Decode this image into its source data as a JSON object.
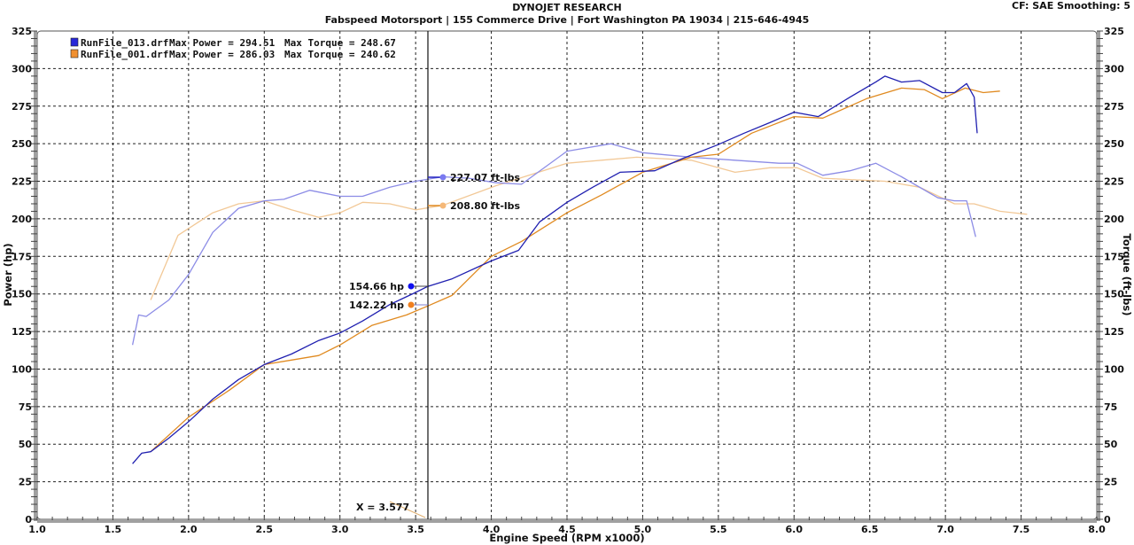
{
  "header": {
    "title": "DYNOJET RESEARCH",
    "subtitle": "Fabspeed Motorsport | 155 Commerce Drive | Fort Washington PA 19034 | 215-646-4945",
    "settings": "CF: SAE  Smoothing: 5"
  },
  "legend": [
    {
      "file": "RunFile_013.drf",
      "max_power_label": "Max Power = 294.51",
      "max_torque_label": "Max Torque = 248.67",
      "color": "#2020c0"
    },
    {
      "file": "RunFile_001.drf",
      "max_power_label": "Max Power = 286.03",
      "max_torque_label": "Max Torque = 240.62",
      "color": "#e08a20"
    }
  ],
  "cursor": {
    "label": "X = 3.577",
    "x": 3.577
  },
  "annotations": [
    {
      "text": "227.07 ft-lbs",
      "series": "RunFile_013 Torque",
      "value": 227.07
    },
    {
      "text": "208.80 ft-lbs",
      "series": "RunFile_001 Torque",
      "value": 208.8
    },
    {
      "text": "154.66 hp",
      "series": "RunFile_013 Power",
      "value": 154.66
    },
    {
      "text": "142.22 hp",
      "series": "RunFile_001 Power",
      "value": 142.22
    }
  ],
  "colors": {
    "power_013": "#2020b0",
    "torque_013": "#8c8ce6",
    "power_001": "#e08a20",
    "torque_001": "#f2c896",
    "grid": "#222222",
    "axis_band": "#a0a0a0"
  },
  "chart_data": {
    "type": "line",
    "title": "DYNOJET RESEARCH",
    "subtitle": "Fabspeed Motorsport | 155 Commerce Drive | Fort Washington PA 19034 | 215-646-4945",
    "xlabel": "Engine Speed (RPM x1000)",
    "ylabel": "Power (hp)",
    "y2label": "Torque (ft-lbs)",
    "xlim": [
      1.0,
      8.0
    ],
    "ylim": [
      0,
      325
    ],
    "y2lim": [
      0,
      325
    ],
    "xticks": [
      "1.0",
      "1.5",
      "2.0",
      "2.5",
      "3.0",
      "3.5",
      "4.0",
      "4.5",
      "5.0",
      "5.5",
      "6.0",
      "6.5",
      "7.0",
      "7.5",
      "8.0"
    ],
    "yticks": [
      "0",
      "25",
      "50",
      "75",
      "100",
      "125",
      "150",
      "175",
      "200",
      "225",
      "250",
      "275",
      "300",
      "325"
    ],
    "grid": true,
    "legend_position": "top-left",
    "series": [
      {
        "name": "RunFile_013.drf Power (hp)",
        "axis": "left",
        "points": [
          [
            1.63,
            37
          ],
          [
            1.69,
            44
          ],
          [
            1.75,
            45
          ],
          [
            1.87,
            54
          ],
          [
            2.0,
            65
          ],
          [
            2.16,
            80
          ],
          [
            2.33,
            93
          ],
          [
            2.5,
            103
          ],
          [
            2.68,
            110
          ],
          [
            2.86,
            119
          ],
          [
            3.0,
            124
          ],
          [
            3.15,
            132
          ],
          [
            3.33,
            143
          ],
          [
            3.5,
            151
          ],
          [
            3.58,
            155
          ],
          [
            3.74,
            160
          ],
          [
            4.0,
            172
          ],
          [
            4.18,
            179
          ],
          [
            4.32,
            198
          ],
          [
            4.5,
            211
          ],
          [
            4.67,
            221
          ],
          [
            4.85,
            231
          ],
          [
            5.08,
            232
          ],
          [
            5.26,
            240
          ],
          [
            5.49,
            249
          ],
          [
            5.67,
            257
          ],
          [
            5.84,
            264
          ],
          [
            6.0,
            271
          ],
          [
            6.16,
            268
          ],
          [
            6.37,
            281
          ],
          [
            6.54,
            291
          ],
          [
            6.6,
            295
          ],
          [
            6.71,
            291
          ],
          [
            6.83,
            292
          ],
          [
            6.98,
            284
          ],
          [
            7.06,
            284
          ],
          [
            7.14,
            290
          ],
          [
            7.19,
            281
          ],
          [
            7.21,
            257
          ]
        ]
      },
      {
        "name": "RunFile_013.drf Torque (ft-lbs)",
        "axis": "right",
        "points": [
          [
            1.63,
            116
          ],
          [
            1.67,
            136
          ],
          [
            1.72,
            135
          ],
          [
            1.87,
            146
          ],
          [
            2.0,
            163
          ],
          [
            2.16,
            191
          ],
          [
            2.33,
            207
          ],
          [
            2.5,
            212
          ],
          [
            2.63,
            213
          ],
          [
            2.8,
            219
          ],
          [
            3.0,
            215
          ],
          [
            3.15,
            215
          ],
          [
            3.33,
            221
          ],
          [
            3.5,
            225
          ],
          [
            3.68,
            228
          ],
          [
            3.85,
            227
          ],
          [
            4.03,
            224
          ],
          [
            4.2,
            223
          ],
          [
            4.5,
            245
          ],
          [
            4.79,
            250
          ],
          [
            5.0,
            244
          ],
          [
            5.32,
            241
          ],
          [
            5.61,
            239
          ],
          [
            5.9,
            237
          ],
          [
            6.02,
            237
          ],
          [
            6.19,
            229
          ],
          [
            6.37,
            232
          ],
          [
            6.54,
            237
          ],
          [
            6.71,
            228
          ],
          [
            6.95,
            214
          ],
          [
            7.06,
            212
          ],
          [
            7.14,
            212
          ],
          [
            7.2,
            188
          ]
        ]
      },
      {
        "name": "RunFile_001.drf Power (hp)",
        "axis": "left",
        "points": [
          [
            1.75,
            45
          ],
          [
            2.0,
            68
          ],
          [
            2.27,
            86
          ],
          [
            2.5,
            103
          ],
          [
            2.68,
            106
          ],
          [
            2.86,
            109
          ],
          [
            3.0,
            116
          ],
          [
            3.21,
            129
          ],
          [
            3.44,
            136
          ],
          [
            3.58,
            142
          ],
          [
            3.74,
            149
          ],
          [
            4.0,
            175
          ],
          [
            4.2,
            185
          ],
          [
            4.5,
            204
          ],
          [
            4.73,
            216
          ],
          [
            5.0,
            231
          ],
          [
            5.32,
            241
          ],
          [
            5.5,
            243
          ],
          [
            5.72,
            257
          ],
          [
            6.0,
            268
          ],
          [
            6.19,
            267
          ],
          [
            6.48,
            280
          ],
          [
            6.71,
            287
          ],
          [
            6.86,
            286
          ],
          [
            6.98,
            280
          ],
          [
            7.13,
            287
          ],
          [
            7.25,
            284
          ],
          [
            7.36,
            285
          ]
        ]
      },
      {
        "name": "RunFile_001.drf Torque (ft-lbs)",
        "axis": "right",
        "points": [
          [
            1.75,
            146
          ],
          [
            1.93,
            189
          ],
          [
            2.16,
            204
          ],
          [
            2.33,
            210
          ],
          [
            2.5,
            212
          ],
          [
            2.68,
            206
          ],
          [
            2.86,
            201
          ],
          [
            3.0,
            204
          ],
          [
            3.15,
            211
          ],
          [
            3.33,
            210
          ],
          [
            3.5,
            206
          ],
          [
            3.68,
            209
          ],
          [
            4.03,
            222
          ],
          [
            4.5,
            237
          ],
          [
            4.96,
            241
          ],
          [
            5.32,
            239
          ],
          [
            5.61,
            231
          ],
          [
            5.84,
            234
          ],
          [
            6.02,
            234
          ],
          [
            6.19,
            227
          ],
          [
            6.6,
            225
          ],
          [
            6.83,
            221
          ],
          [
            7.06,
            210
          ],
          [
            7.19,
            210
          ],
          [
            7.36,
            205
          ],
          [
            7.54,
            203
          ]
        ]
      }
    ],
    "annotations": [
      {
        "text": "227.07 ft-lbs",
        "x": 3.577,
        "y": 227.07
      },
      {
        "text": "208.80 ft-lbs",
        "x": 3.577,
        "y": 208.8
      },
      {
        "text": "154.66 hp",
        "x": 3.577,
        "y": 154.66
      },
      {
        "text": "142.22 hp",
        "x": 3.577,
        "y": 142.22
      },
      {
        "text": "X = 3.577",
        "x": 3.577,
        "y": 0
      }
    ],
    "max_values": {
      "RunFile_013": {
        "max_power": 294.51,
        "max_torque": 248.67
      },
      "RunFile_001": {
        "max_power": 286.03,
        "max_torque": 240.62
      }
    }
  }
}
